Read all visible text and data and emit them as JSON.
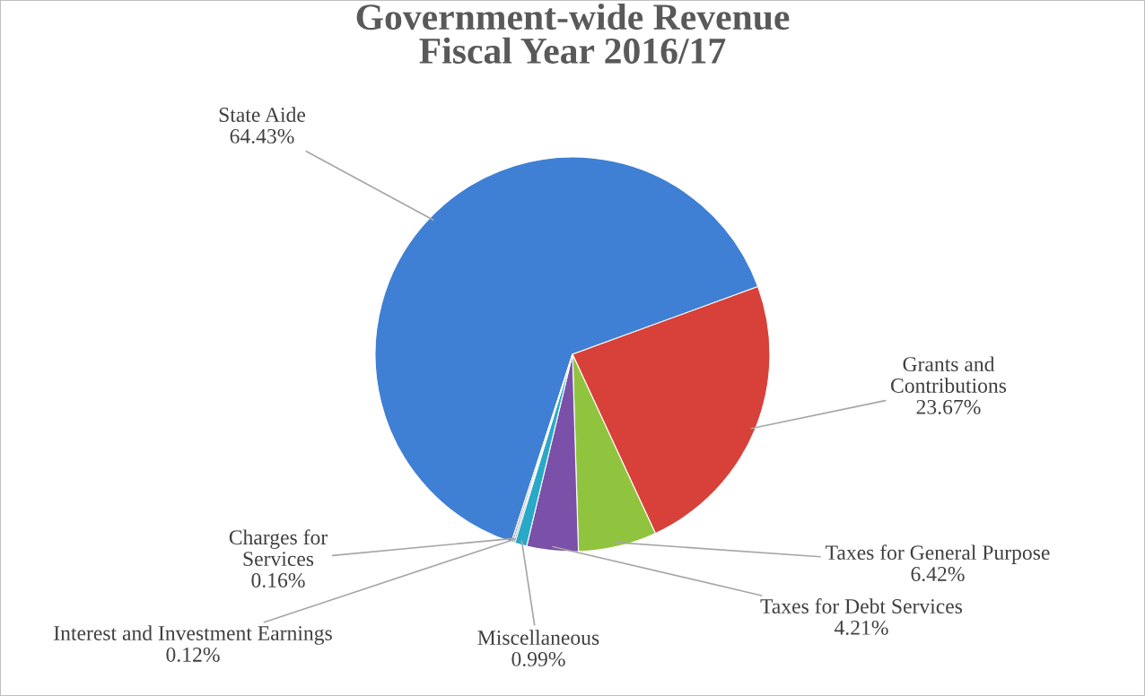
{
  "chart_data": {
    "type": "pie",
    "title": "Government-wide Revenue\nFiscal Year 2016/17",
    "categories": [
      "State Aide",
      "Grants and\nContributions",
      "Taxes for General Purpose",
      "Taxes for Debt Services",
      "Miscellaneous",
      "Interest and Investment Earnings",
      "Charges for\nServices"
    ],
    "values": [
      64.43,
      23.67,
      6.42,
      4.21,
      0.99,
      0.12,
      0.16
    ],
    "colors": [
      "#3f7fd4",
      "#d8403a",
      "#90c43f",
      "#7b50a8",
      "#2aa8c8",
      "#2f5f9a",
      "#a0a0a0"
    ],
    "value_labels": [
      "64.43%",
      "23.67%",
      "6.42%",
      "4.21%",
      "0.99%",
      "0.12%",
      "0.16%"
    ]
  }
}
